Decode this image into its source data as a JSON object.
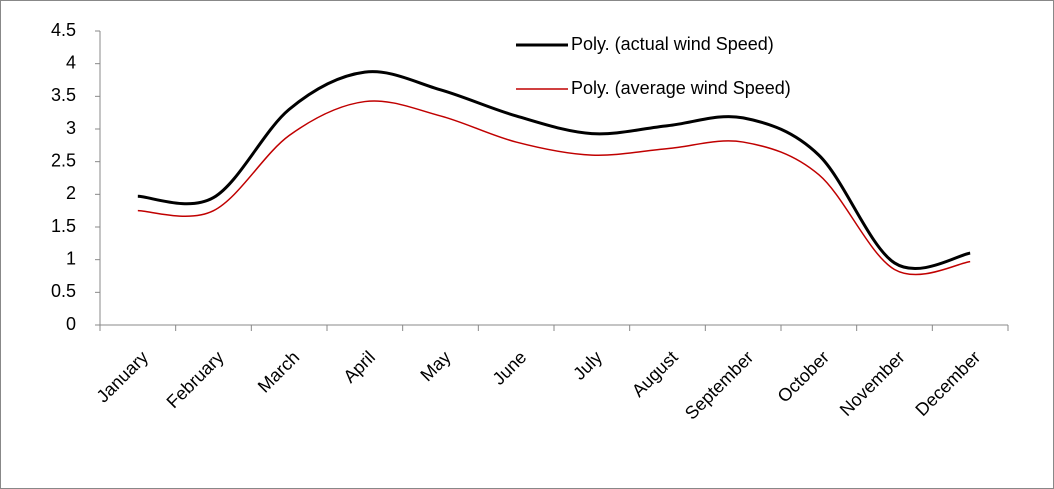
{
  "chart_data": {
    "type": "line",
    "categories": [
      "January",
      "February",
      "March",
      "April",
      "May",
      "June",
      "July",
      "August",
      "September",
      "October",
      "November",
      "December"
    ],
    "series": [
      {
        "name": "Poly. (actual wind Speed)",
        "color": "#000000",
        "values": [
          1.97,
          1.95,
          3.3,
          3.87,
          3.6,
          3.2,
          2.93,
          3.05,
          3.17,
          2.6,
          0.95,
          1.1
        ]
      },
      {
        "name": "Poly. (average wind Speed)",
        "color": "#c00000",
        "values": [
          1.75,
          1.75,
          2.9,
          3.42,
          3.2,
          2.8,
          2.6,
          2.7,
          2.8,
          2.3,
          0.85,
          0.97
        ]
      }
    ],
    "ylim": [
      0,
      4.5
    ],
    "yticks": [
      0,
      0.5,
      1,
      1.5,
      2,
      2.5,
      3,
      3.5,
      4,
      4.5
    ],
    "legend": "top-right",
    "grid": false
  }
}
